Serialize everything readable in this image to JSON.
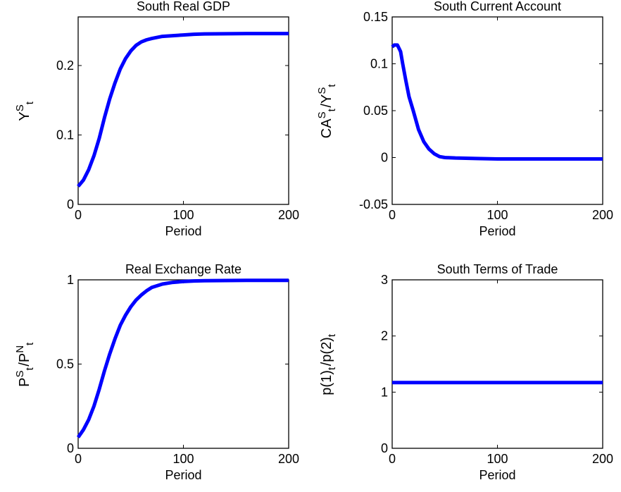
{
  "chart_data": [
    {
      "type": "line",
      "title": "South Real GDP",
      "xlabel": "Period",
      "ylabel": {
        "base": "Y",
        "sup": "S",
        "sub": "t"
      },
      "xlim": [
        0,
        200
      ],
      "ylim": [
        0,
        0.27
      ],
      "xticks": [
        0,
        100,
        200
      ],
      "yticks": [
        0,
        0.1,
        0.2
      ],
      "grid": false,
      "series": [
        {
          "color": "#0000ff",
          "x": [
            0,
            5,
            10,
            15,
            20,
            25,
            30,
            35,
            40,
            45,
            50,
            55,
            60,
            65,
            70,
            80,
            90,
            100,
            110,
            120,
            140,
            160,
            180,
            200
          ],
          "y": [
            0.026,
            0.035,
            0.05,
            0.07,
            0.095,
            0.125,
            0.152,
            0.175,
            0.195,
            0.21,
            0.221,
            0.229,
            0.234,
            0.237,
            0.239,
            0.242,
            0.243,
            0.244,
            0.245,
            0.2455,
            0.2458,
            0.246,
            0.246,
            0.246
          ]
        }
      ]
    },
    {
      "type": "line",
      "title": "South Current Account",
      "xlabel": "Period",
      "ylabel": {
        "base": "CA",
        "sup": "S",
        "sub": "t",
        "sep": "/",
        "base2": "Y",
        "sup2": "S",
        "sub2": "t"
      },
      "xlim": [
        0,
        200
      ],
      "ylim": [
        -0.05,
        0.15
      ],
      "xticks": [
        0,
        100,
        200
      ],
      "yticks": [
        -0.05,
        0,
        0.05,
        0.1,
        0.15
      ],
      "ytick_labels": [
        "-0.05",
        "0",
        "0.05",
        "0.1",
        "0.15"
      ],
      "grid": false,
      "series": [
        {
          "color": "#0000ff",
          "x": [
            0,
            2,
            5,
            8,
            10,
            13,
            16,
            20,
            25,
            30,
            35,
            40,
            45,
            50,
            60,
            80,
            100,
            120,
            150,
            200
          ],
          "y": [
            0.118,
            0.12,
            0.12,
            0.113,
            0.1,
            0.082,
            0.065,
            0.05,
            0.03,
            0.017,
            0.009,
            0.004,
            0.001,
            0.0,
            -0.0005,
            -0.001,
            -0.0015,
            -0.0015,
            -0.0015,
            -0.0015
          ]
        }
      ]
    },
    {
      "type": "line",
      "title": "Real Exchange Rate",
      "xlabel": "Period",
      "ylabel": {
        "base": "P",
        "sup": "S",
        "sub": "t",
        "sep": "/",
        "base2": "P",
        "sup2": "N",
        "sub2": "t"
      },
      "xlim": [
        0,
        200
      ],
      "ylim": [
        0,
        1
      ],
      "xticks": [
        0,
        100,
        200
      ],
      "yticks": [
        0,
        0.5,
        1
      ],
      "grid": false,
      "series": [
        {
          "color": "#0000ff",
          "x": [
            0,
            5,
            10,
            15,
            20,
            25,
            30,
            35,
            40,
            45,
            50,
            55,
            60,
            65,
            70,
            75,
            80,
            90,
            100,
            110,
            120,
            140,
            160,
            180,
            200
          ],
          "y": [
            0.065,
            0.11,
            0.17,
            0.25,
            0.35,
            0.46,
            0.56,
            0.65,
            0.73,
            0.79,
            0.84,
            0.88,
            0.91,
            0.935,
            0.955,
            0.965,
            0.975,
            0.985,
            0.99,
            0.993,
            0.995,
            0.996,
            0.997,
            0.997,
            0.997
          ]
        }
      ]
    },
    {
      "type": "line",
      "title": "South Terms of Trade",
      "xlabel": "Period",
      "ylabel": {
        "base": "p(1)",
        "sub": "t",
        "sep": "/",
        "base2": "p(2)",
        "sub2": "t"
      },
      "xlim": [
        0,
        200
      ],
      "ylim": [
        0,
        3
      ],
      "xticks": [
        0,
        100,
        200
      ],
      "yticks": [
        0,
        1,
        2,
        3
      ],
      "grid": false,
      "series": [
        {
          "color": "#0000ff",
          "x": [
            0,
            200
          ],
          "y": [
            1.17,
            1.17
          ]
        }
      ]
    }
  ]
}
